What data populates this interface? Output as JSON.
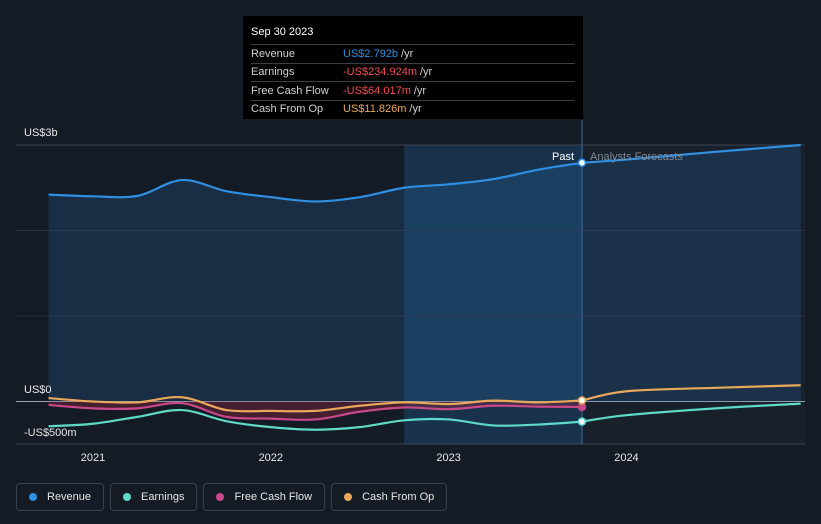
{
  "tooltip": {
    "date": "Sep 30 2023",
    "rows": [
      {
        "label": "Revenue",
        "value": "US$2.792b",
        "unit": "/yr",
        "color": "#2c8fe0"
      },
      {
        "label": "Earnings",
        "value": "-US$234.924m",
        "unit": "/yr",
        "color": "#f04e4e"
      },
      {
        "label": "Free Cash Flow",
        "value": "-US$64.017m",
        "unit": "/yr",
        "color": "#f04e4e"
      },
      {
        "label": "Cash From Op",
        "value": "US$11.826m",
        "unit": "/yr",
        "color": "#e8a85a"
      }
    ]
  },
  "labels": {
    "past": "Past",
    "forecast": "Analysts Forecasts"
  },
  "legend": [
    {
      "label": "Revenue",
      "color": "#2f8fe3"
    },
    {
      "label": "Earnings",
      "color": "#5fd9c8"
    },
    {
      "label": "Free Cash Flow",
      "color": "#c8488a"
    },
    {
      "label": "Cash From Op",
      "color": "#e8a85a"
    }
  ],
  "chart_data": {
    "type": "line",
    "ylabels": [
      "US$3b",
      "US$0",
      "-US$500m"
    ],
    "ylim": [
      -500,
      3000
    ],
    "xlim": [
      2020.7,
      2024.98
    ],
    "xticks": [
      2021,
      2022,
      2023,
      2024
    ],
    "xtick_labels": [
      "2021",
      "2022",
      "2023",
      "2024"
    ],
    "past_end": 2023.75,
    "highlight_start": 2022.75,
    "series": [
      {
        "name": "Revenue",
        "color": "#2f8fe3",
        "points": [
          [
            2020.75,
            2420
          ],
          [
            2021.0,
            2400
          ],
          [
            2021.25,
            2405
          ],
          [
            2021.5,
            2590
          ],
          [
            2021.75,
            2460
          ],
          [
            2022.0,
            2390
          ],
          [
            2022.25,
            2340
          ],
          [
            2022.5,
            2390
          ],
          [
            2022.75,
            2500
          ],
          [
            2023.0,
            2540
          ],
          [
            2023.25,
            2600
          ],
          [
            2023.5,
            2710
          ],
          [
            2023.75,
            2792
          ]
        ],
        "forecast": [
          [
            2023.75,
            2792
          ],
          [
            2024.0,
            2830
          ],
          [
            2024.5,
            2920
          ],
          [
            2024.98,
            3000
          ]
        ]
      },
      {
        "name": "Earnings",
        "color": "#5fd9c8",
        "points": [
          [
            2020.75,
            -290
          ],
          [
            2021.0,
            -260
          ],
          [
            2021.25,
            -180
          ],
          [
            2021.5,
            -100
          ],
          [
            2021.75,
            -230
          ],
          [
            2022.0,
            -300
          ],
          [
            2022.25,
            -330
          ],
          [
            2022.5,
            -300
          ],
          [
            2022.75,
            -220
          ],
          [
            2023.0,
            -210
          ],
          [
            2023.25,
            -280
          ],
          [
            2023.5,
            -270
          ],
          [
            2023.75,
            -235
          ]
        ],
        "forecast": [
          [
            2023.75,
            -235
          ],
          [
            2024.0,
            -160
          ],
          [
            2024.5,
            -80
          ],
          [
            2024.98,
            -25
          ]
        ]
      },
      {
        "name": "Free Cash Flow",
        "color": "#c8488a",
        "points": [
          [
            2020.75,
            -40
          ],
          [
            2021.0,
            -80
          ],
          [
            2021.25,
            -80
          ],
          [
            2021.5,
            -20
          ],
          [
            2021.75,
            -180
          ],
          [
            2022.0,
            -200
          ],
          [
            2022.25,
            -210
          ],
          [
            2022.5,
            -120
          ],
          [
            2022.75,
            -70
          ],
          [
            2023.0,
            -90
          ],
          [
            2023.25,
            -50
          ],
          [
            2023.5,
            -60
          ],
          [
            2023.75,
            -64
          ]
        ],
        "forecast": []
      },
      {
        "name": "Cash From Op",
        "color": "#e8a85a",
        "points": [
          [
            2020.75,
            40
          ],
          [
            2021.0,
            0
          ],
          [
            2021.25,
            -10
          ],
          [
            2021.5,
            50
          ],
          [
            2021.75,
            -100
          ],
          [
            2022.0,
            -110
          ],
          [
            2022.25,
            -110
          ],
          [
            2022.5,
            -50
          ],
          [
            2022.75,
            -10
          ],
          [
            2023.0,
            -30
          ],
          [
            2023.25,
            10
          ],
          [
            2023.5,
            -10
          ],
          [
            2023.75,
            12
          ]
        ],
        "forecast": [
          [
            2023.75,
            12
          ],
          [
            2024.0,
            120
          ],
          [
            2024.5,
            160
          ],
          [
            2024.98,
            190
          ]
        ]
      }
    ]
  }
}
